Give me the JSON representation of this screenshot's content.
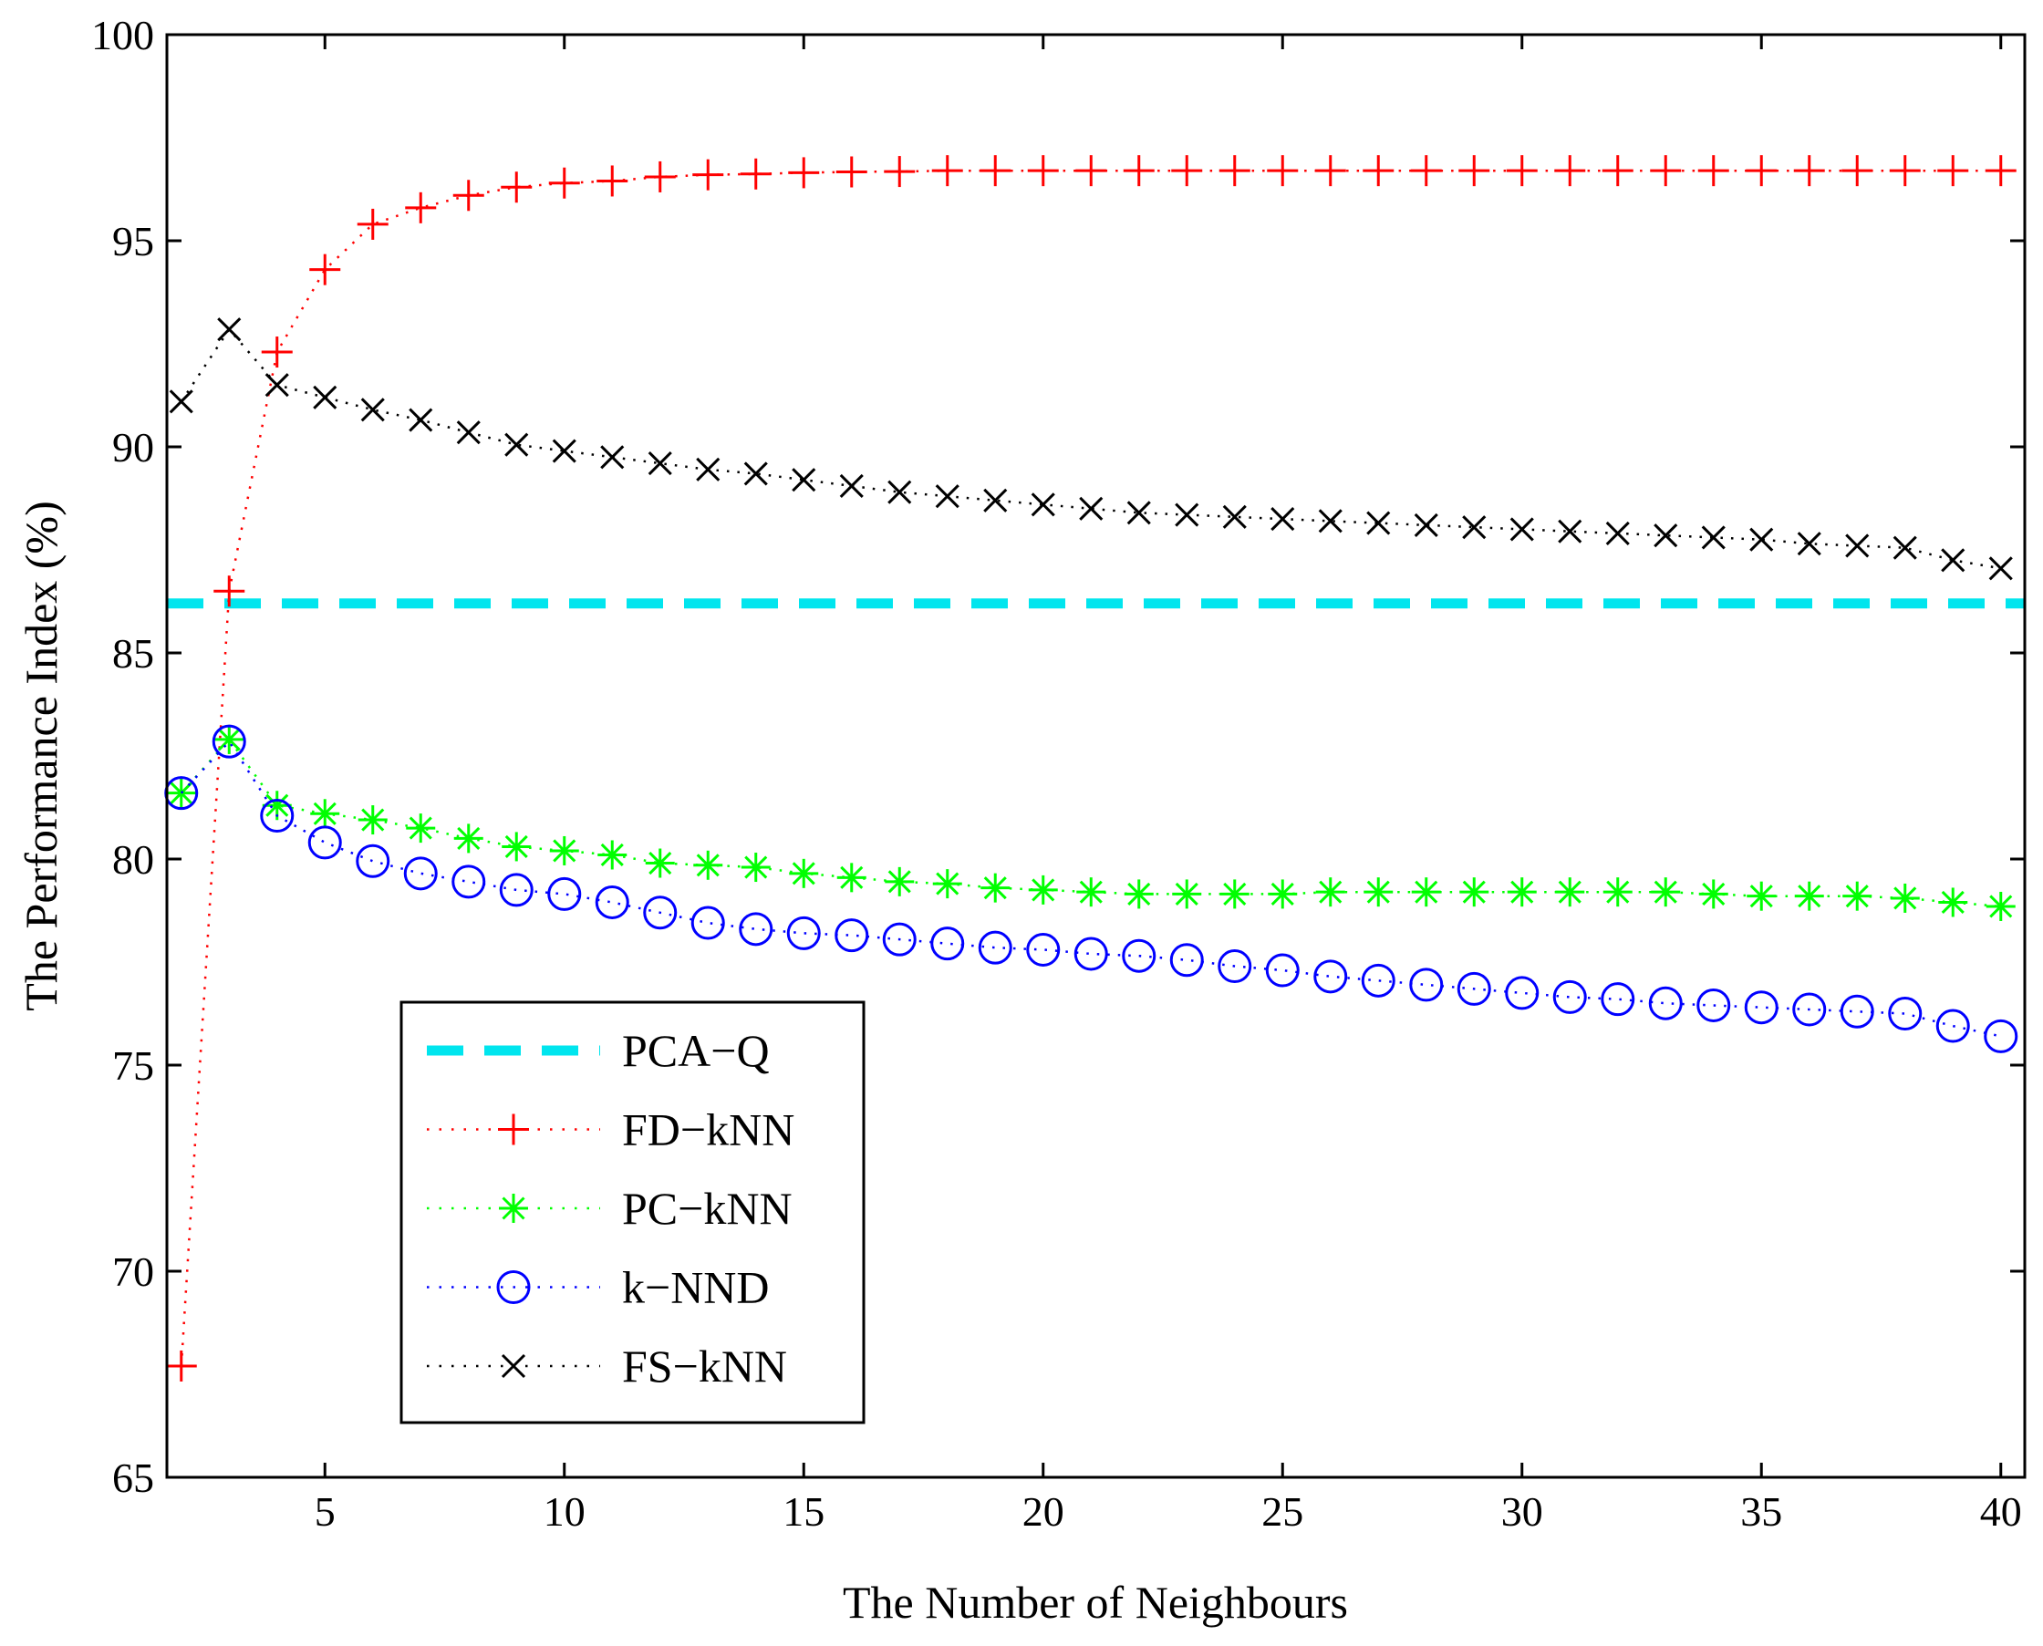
{
  "chart_data": {
    "type": "line",
    "title": "",
    "xlabel": "The Number of Neighbours",
    "ylabel": "The Performance Index (%)",
    "xlim": [
      1.7,
      40.5
    ],
    "ylim": [
      65,
      100
    ],
    "xticks": [
      5,
      10,
      15,
      20,
      25,
      30,
      35,
      40
    ],
    "yticks": [
      65,
      70,
      75,
      80,
      85,
      90,
      95,
      100
    ],
    "grid": false,
    "legend_position": "bottom-left",
    "series": [
      {
        "name": "PCA−Q",
        "kind": "hline",
        "color": "#00e5ee",
        "marker": "none",
        "x": [
          1.7,
          40.5
        ],
        "y": [
          86.2,
          86.2
        ]
      },
      {
        "name": "FD−kNN",
        "color": "#ff0000",
        "marker": "plus",
        "x": [
          2,
          3,
          4,
          5,
          6,
          7,
          8,
          9,
          10,
          11,
          12,
          13,
          14,
          15,
          16,
          17,
          18,
          19,
          20,
          21,
          22,
          23,
          24,
          25,
          26,
          27,
          28,
          29,
          30,
          31,
          32,
          33,
          34,
          35,
          36,
          37,
          38,
          39,
          40
        ],
        "y": [
          67.7,
          86.5,
          92.3,
          94.3,
          95.4,
          95.8,
          96.1,
          96.3,
          96.4,
          96.45,
          96.55,
          96.6,
          96.62,
          96.65,
          96.67,
          96.68,
          96.7,
          96.7,
          96.7,
          96.7,
          96.7,
          96.7,
          96.7,
          96.7,
          96.7,
          96.7,
          96.7,
          96.7,
          96.7,
          96.7,
          96.7,
          96.7,
          96.7,
          96.7,
          96.7,
          96.7,
          96.7,
          96.7,
          96.7
        ]
      },
      {
        "name": "PC−kNN",
        "color": "#00ff00",
        "marker": "asterisk",
        "x": [
          2,
          3,
          4,
          5,
          6,
          7,
          8,
          9,
          10,
          11,
          12,
          13,
          14,
          15,
          16,
          17,
          18,
          19,
          20,
          21,
          22,
          23,
          24,
          25,
          26,
          27,
          28,
          29,
          30,
          31,
          32,
          33,
          34,
          35,
          36,
          37,
          38,
          39,
          40
        ],
        "y": [
          81.6,
          82.9,
          81.3,
          81.1,
          80.95,
          80.75,
          80.5,
          80.3,
          80.2,
          80.1,
          79.9,
          79.85,
          79.8,
          79.65,
          79.55,
          79.45,
          79.4,
          79.3,
          79.25,
          79.2,
          79.15,
          79.15,
          79.15,
          79.15,
          79.2,
          79.2,
          79.2,
          79.2,
          79.2,
          79.2,
          79.2,
          79.2,
          79.15,
          79.1,
          79.1,
          79.1,
          79.05,
          78.95,
          78.85
        ]
      },
      {
        "name": "k−NND",
        "color": "#0000ff",
        "marker": "circle",
        "x": [
          2,
          3,
          4,
          5,
          6,
          7,
          8,
          9,
          10,
          11,
          12,
          13,
          14,
          15,
          16,
          17,
          18,
          19,
          20,
          21,
          22,
          23,
          24,
          25,
          26,
          27,
          28,
          29,
          30,
          31,
          32,
          33,
          34,
          35,
          36,
          37,
          38,
          39,
          40
        ],
        "y": [
          81.6,
          82.85,
          81.05,
          80.4,
          79.95,
          79.65,
          79.45,
          79.25,
          79.15,
          78.95,
          78.7,
          78.45,
          78.3,
          78.2,
          78.15,
          78.05,
          77.95,
          77.85,
          77.8,
          77.7,
          77.65,
          77.55,
          77.4,
          77.3,
          77.15,
          77.05,
          76.95,
          76.85,
          76.75,
          76.65,
          76.6,
          76.5,
          76.45,
          76.4,
          76.35,
          76.3,
          76.25,
          75.95,
          75.7
        ]
      },
      {
        "name": "FS−kNN",
        "color": "#000000",
        "marker": "cross",
        "x": [
          2,
          3,
          4,
          5,
          6,
          7,
          8,
          9,
          10,
          11,
          12,
          13,
          14,
          15,
          16,
          17,
          18,
          19,
          20,
          21,
          22,
          23,
          24,
          25,
          26,
          27,
          28,
          29,
          30,
          31,
          32,
          33,
          34,
          35,
          36,
          37,
          38,
          39,
          40
        ],
        "y": [
          91.1,
          92.85,
          91.5,
          91.2,
          90.9,
          90.65,
          90.35,
          90.05,
          89.9,
          89.75,
          89.6,
          89.45,
          89.35,
          89.2,
          89.05,
          88.9,
          88.8,
          88.7,
          88.6,
          88.5,
          88.4,
          88.35,
          88.3,
          88.25,
          88.2,
          88.15,
          88.1,
          88.05,
          88.0,
          87.95,
          87.9,
          87.85,
          87.8,
          87.75,
          87.65,
          87.6,
          87.55,
          87.25,
          87.05
        ]
      }
    ]
  }
}
